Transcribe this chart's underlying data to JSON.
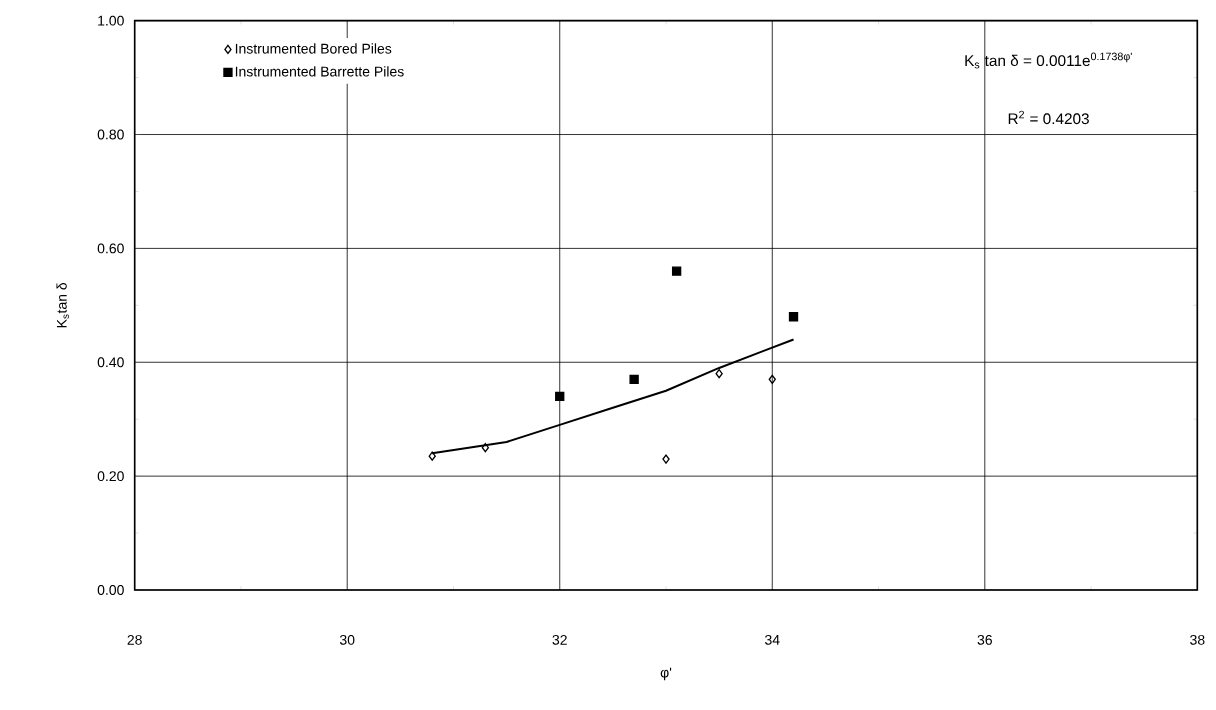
{
  "chart_data": {
    "type": "scatter",
    "xlabel": "φ'",
    "ylabel": "K$_{s}$tan δ",
    "annotations": [
      "K$_{s}$ tan δ = 0.0011e$^{0.1738φ'}$",
      "R$^{2}$ = 0.4203"
    ],
    "series": [
      {
        "name": "Instrumented Bored Piles",
        "color": "#000000",
        "marker": "diamond",
        "x": [
          30.8,
          31.3,
          33.0,
          33.5,
          34.0
        ],
        "values": [
          0.235,
          0.25,
          0.23,
          0.38,
          0.37
        ]
      },
      {
        "name": "Instrumented Barrette Piles",
        "color": "#000000",
        "marker": "square",
        "x": [
          32.0,
          32.7,
          33.1,
          34.2
        ],
        "values": [
          0.34,
          0.37,
          0.56,
          0.48
        ]
      },
      {
        "type": "line",
        "color": "#000000",
        "marker": "none",
        "x": [
          30.8,
          31.5,
          32.0,
          32.5,
          33.0,
          33.5,
          34.2
        ],
        "values": [
          0.24,
          0.26,
          0.29,
          0.32,
          0.35,
          0.39,
          0.44
        ]
      }
    ],
    "xlim": [
      28,
      38
    ],
    "xticks": [
      28,
      30,
      32,
      34,
      36,
      38
    ],
    "ylim": [
      0,
      1
    ],
    "yticks": [
      {
        "value": 0,
        "label": "0.00"
      },
      {
        "value": 0.2,
        "label": "0.20"
      },
      {
        "value": 0.4,
        "label": "0.40"
      },
      {
        "value": 0.6,
        "label": "0.60"
      },
      {
        "value": 0.8,
        "label": "0.80"
      },
      {
        "value": 1,
        "label": "1.00"
      }
    ],
    "grid": true,
    "legend": "top left"
  }
}
